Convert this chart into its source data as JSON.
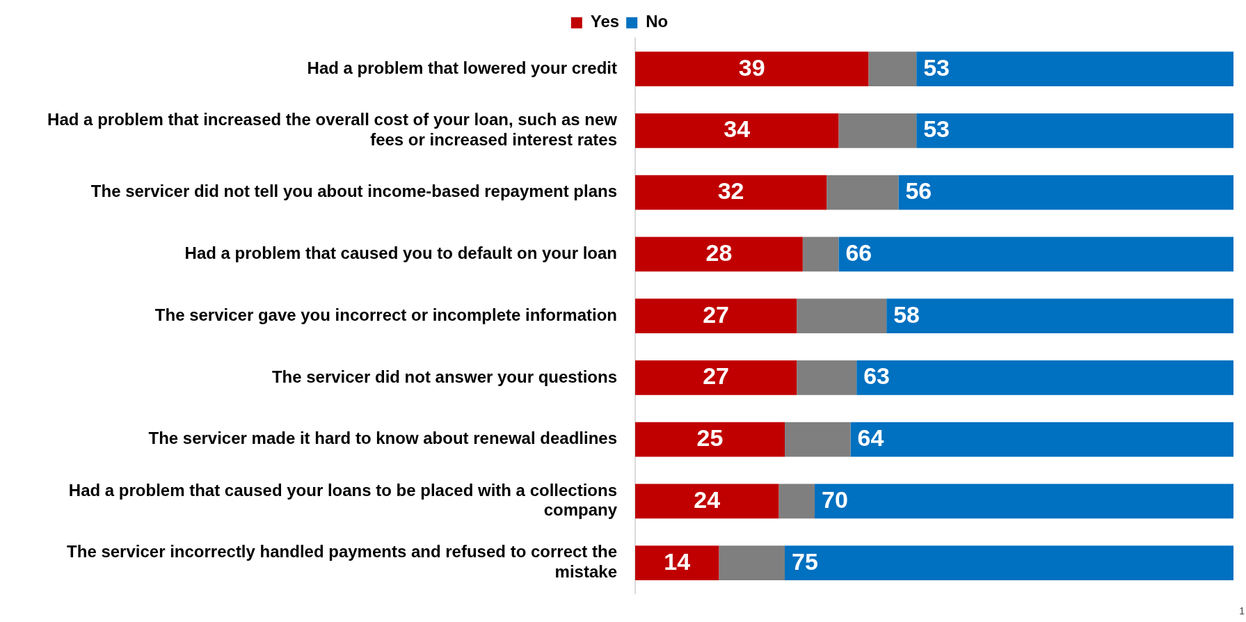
{
  "chart_data": {
    "type": "bar",
    "orientation": "horizontal",
    "stacked": true,
    "categories": [
      "Had a problem that lowered your credit",
      "Had a problem that increased the overall cost of your loan, such as new fees or increased interest rates",
      "The servicer did not tell you about income-based repayment plans",
      "Had a problem that caused you to default on your loan",
      "The servicer gave you incorrect or incomplete information",
      "The servicer did not answer your questions",
      "The servicer made it hard to know about renewal deadlines",
      "Had a problem that caused your loans to be placed with a collections company",
      "The servicer incorrectly handled payments and refused to correct the mistake"
    ],
    "series": [
      {
        "name": "Yes",
        "color": "#c00000",
        "values": [
          39,
          34,
          32,
          28,
          27,
          27,
          25,
          24,
          14
        ],
        "value_labels": [
          "39",
          "34",
          "32",
          "28",
          "27",
          "27",
          "25",
          "24",
          "14"
        ]
      },
      {
        "color": "#7f7f7f",
        "values": [
          8,
          13,
          12,
          6,
          15,
          10,
          11,
          6,
          11
        ]
      },
      {
        "name": "No",
        "color": "#0070c0",
        "values": [
          53,
          53,
          56,
          66,
          58,
          63,
          64,
          70,
          75
        ],
        "value_labels": [
          "53",
          "53",
          "56",
          "66",
          "58",
          "63",
          "64",
          "70",
          "75"
        ]
      }
    ],
    "xlim": [
      0,
      100
    ],
    "tick_labels": "y",
    "grid": false,
    "legend": "top",
    "annotations": [
      "1"
    ]
  }
}
